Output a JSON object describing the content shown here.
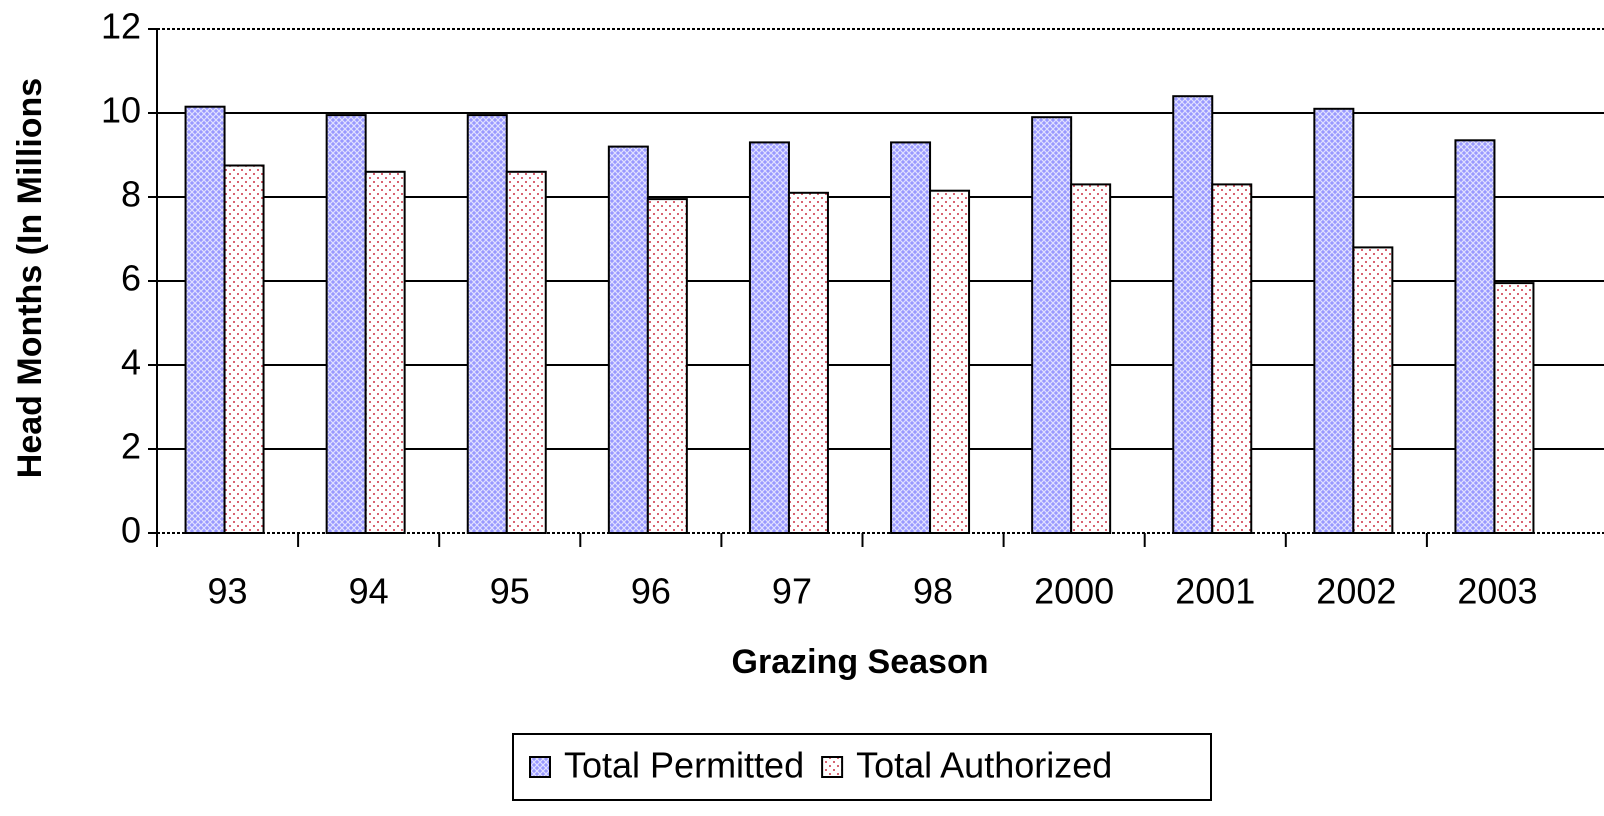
{
  "chart_data": {
    "type": "bar",
    "x_label": "Grazing Season",
    "y_label": "Head Months (In Millions",
    "categories": [
      "93",
      "94",
      "95",
      "96",
      "97",
      "98",
      "2000",
      "2001",
      "2002",
      "2003"
    ],
    "series": [
      {
        "name": "Total Permitted",
        "color": "#9999ff",
        "values": [
          10.15,
          9.95,
          9.95,
          9.2,
          9.3,
          9.3,
          9.9,
          10.4,
          10.1,
          9.35
        ]
      },
      {
        "name": "Total Authorized",
        "color": "#ffffff",
        "values": [
          8.75,
          8.6,
          8.6,
          7.95,
          8.1,
          8.15,
          8.3,
          8.3,
          6.8,
          5.95
        ]
      }
    ],
    "ylim": [
      0,
      12
    ],
    "yticks": [
      0,
      2,
      4,
      6,
      8,
      10,
      12
    ],
    "grid": true,
    "legend": "bottom"
  }
}
